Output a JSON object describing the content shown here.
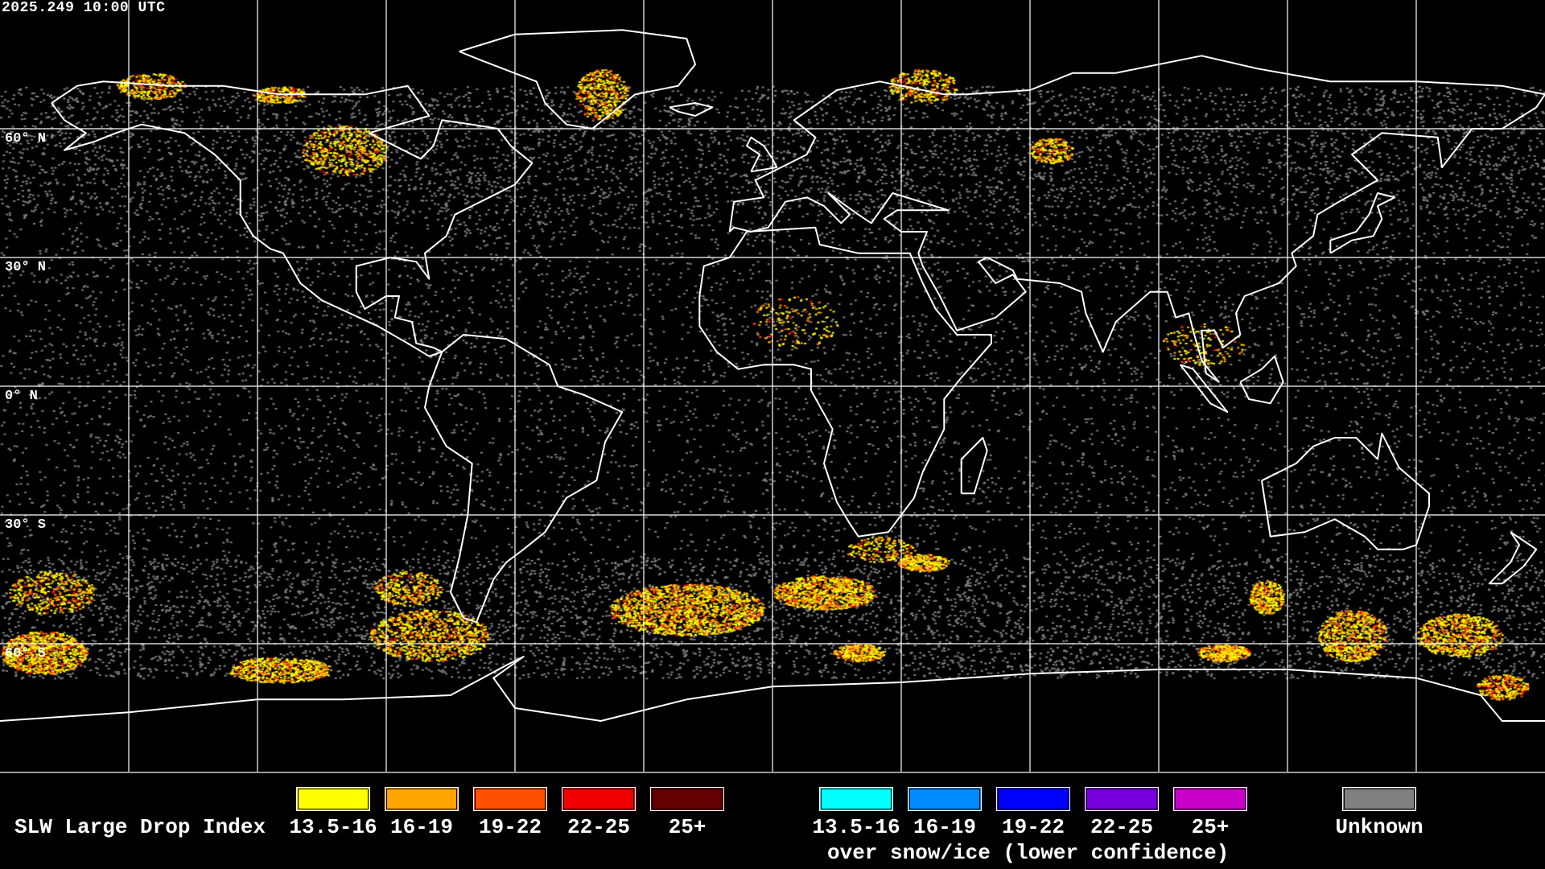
{
  "header": {
    "timestamp": "2025.249 10:00 UTC"
  },
  "map": {
    "projection": "equirectangular",
    "grid_interval_deg": 30,
    "lat_labels": [
      "60° N",
      "30° N",
      "0° N",
      "30° S",
      "60° S"
    ],
    "coastline_color": "#ffffff",
    "gridline_color": "#ffffff",
    "background_color": "#000000"
  },
  "legend": {
    "title": "SLW Large Drop Index",
    "primary": [
      {
        "label": "13.5-16",
        "color": "#ffff00"
      },
      {
        "label": "16-19",
        "color": "#ffa500"
      },
      {
        "label": "19-22",
        "color": "#ff5000"
      },
      {
        "label": "22-25",
        "color": "#f00000"
      },
      {
        "label": "25+",
        "color": "#640000"
      }
    ],
    "snow_ice": [
      {
        "label": "13.5-16",
        "color": "#00ffff"
      },
      {
        "label": "16-19",
        "color": "#008cff"
      },
      {
        "label": "19-22",
        "color": "#0000ff"
      },
      {
        "label": "22-25",
        "color": "#7800dc"
      },
      {
        "label": "25+",
        "color": "#c800c8"
      }
    ],
    "snow_ice_caption": "over snow/ice (lower confidence)",
    "unknown": {
      "label": "Unknown",
      "color": "#808080"
    }
  }
}
